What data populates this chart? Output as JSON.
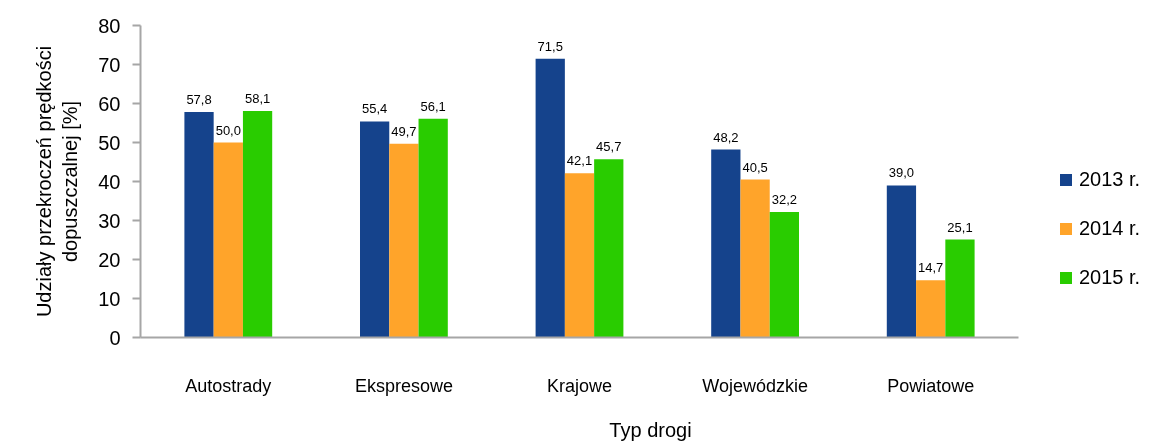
{
  "chart_data": {
    "type": "bar",
    "xlabel": "Typ drogi",
    "ylabel": "Udziały przekroczeń prędkości\ndopuszczalnej [%]",
    "categories": [
      "Autostrady",
      "Ekspresowe",
      "Krajowe",
      "Wojewódzkie",
      "Powiatowe"
    ],
    "series": [
      {
        "name": "2013 r.",
        "color": "#15438c",
        "values": [
          57.8,
          55.4,
          71.5,
          48.2,
          39.0
        ],
        "value_labels": [
          "57,8",
          "55,4",
          "71,5",
          "48,2",
          "39,0"
        ]
      },
      {
        "name": "2014 r.",
        "color": "#ffa42a",
        "values": [
          50.0,
          49.7,
          42.1,
          40.5,
          14.7
        ],
        "value_labels": [
          "50,0",
          "49,7",
          "42,1",
          "40,5",
          "14,7"
        ]
      },
      {
        "name": "2015 r.",
        "color": "#29cc00",
        "values": [
          58.1,
          56.1,
          45.7,
          32.2,
          25.1
        ],
        "value_labels": [
          "58,1",
          "56,1",
          "45,7",
          "32,2",
          "25,1"
        ]
      }
    ],
    "ylim": [
      0,
      80
    ],
    "yticks": [
      0,
      10,
      20,
      30,
      40,
      50,
      60,
      70,
      80
    ],
    "grid": false,
    "legend": "right"
  }
}
